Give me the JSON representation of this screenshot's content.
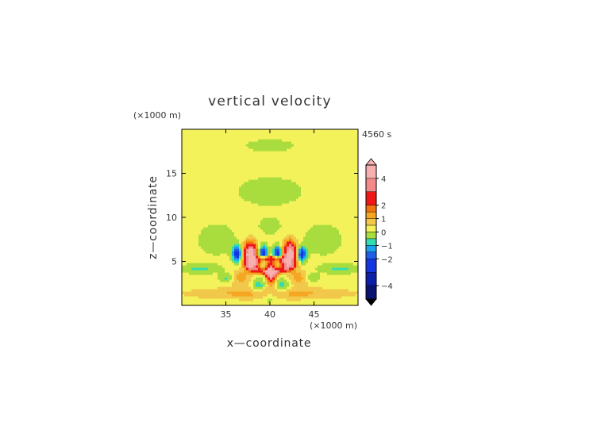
{
  "chart_data": {
    "type": "heatmap",
    "title": "vertical velocity",
    "time_label": "4560 s",
    "xlabel": "x—coordinate",
    "ylabel": "z—coordinate",
    "x_unit": "(×1000 m)",
    "y_unit": "(×1000 m)",
    "xlim": [
      30,
      50
    ],
    "ylim": [
      0,
      20
    ],
    "x_ticks": [
      35,
      40,
      45
    ],
    "y_ticks": [
      5,
      10,
      15
    ],
    "colorbar": {
      "range": [
        -5,
        5
      ],
      "tick_values": [
        4,
        2,
        1,
        0,
        -1,
        -2,
        -4
      ],
      "tick_labels": [
        "4",
        "2",
        "1",
        "0",
        "−1",
        "−2",
        "−4"
      ],
      "levels": [
        {
          "from": 4.0,
          "to": 5.0,
          "color": "#f6b0b0"
        },
        {
          "from": 3.0,
          "to": 4.0,
          "color": "#f38a8a"
        },
        {
          "from": 2.0,
          "to": 3.0,
          "color": "#ee1818"
        },
        {
          "from": 1.5,
          "to": 2.0,
          "color": "#f07410"
        },
        {
          "from": 1.0,
          "to": 1.5,
          "color": "#f5a623"
        },
        {
          "from": 0.5,
          "to": 1.0,
          "color": "#f2c84b"
        },
        {
          "from": 0.0,
          "to": 0.5,
          "color": "#f4f25a"
        },
        {
          "from": -0.5,
          "to": 0.0,
          "color": "#a9dd3e"
        },
        {
          "from": -1.0,
          "to": -0.5,
          "color": "#33ddb4"
        },
        {
          "from": -1.5,
          "to": -1.0,
          "color": "#1aa3ee"
        },
        {
          "from": -2.0,
          "to": -1.5,
          "color": "#1e5eea"
        },
        {
          "from": -3.0,
          "to": -2.0,
          "color": "#1436e0"
        },
        {
          "from": -4.0,
          "to": -3.0,
          "color": "#0d1ea8"
        },
        {
          "from": -5.0,
          "to": -4.0,
          "color": "#0a1470"
        }
      ]
    },
    "features": [
      {
        "kind": "updraft",
        "x": 37.8,
        "z": 5.8,
        "rx": 0.8,
        "rz": 1.4,
        "w": 4.8
      },
      {
        "kind": "updraft",
        "x": 42.3,
        "z": 5.9,
        "rx": 0.8,
        "rz": 1.4,
        "w": 4.8
      },
      {
        "kind": "updraft",
        "x": 40.1,
        "z": 3.8,
        "rx": 0.55,
        "rz": 1.1,
        "w": 4.6
      },
      {
        "kind": "updraft_ring",
        "x": 40.0,
        "z": 4.6,
        "rx": 3.6,
        "rz": 1.4,
        "w": 2.4
      },
      {
        "kind": "downdraft",
        "x": 36.3,
        "z": 5.9,
        "rx": 0.5,
        "rz": 0.8,
        "w": -3.0
      },
      {
        "kind": "downdraft",
        "x": 39.2,
        "z": 6.0,
        "rx": 0.5,
        "rz": 0.8,
        "w": -2.8
      },
      {
        "kind": "downdraft",
        "x": 40.9,
        "z": 6.0,
        "rx": 0.5,
        "rz": 0.8,
        "w": -2.8
      },
      {
        "kind": "downdraft",
        "x": 43.6,
        "z": 5.9,
        "rx": 0.5,
        "rz": 0.8,
        "w": -3.0
      },
      {
        "kind": "downdraft",
        "x": 35.3,
        "z": 3.2,
        "rx": 0.9,
        "rz": 0.5,
        "w": -1.1
      },
      {
        "kind": "downdraft",
        "x": 44.6,
        "z": 3.2,
        "rx": 0.9,
        "rz": 0.5,
        "w": -1.1
      },
      {
        "kind": "downdraft",
        "x": 38.7,
        "z": 2.2,
        "rx": 0.7,
        "rz": 0.9,
        "w": -1.2
      },
      {
        "kind": "downdraft",
        "x": 41.4,
        "z": 2.2,
        "rx": 0.7,
        "rz": 0.9,
        "w": -1.2
      },
      {
        "kind": "downdraft",
        "x": 40.0,
        "z": 1.0,
        "rx": 0.7,
        "rz": 0.6,
        "w": -0.9
      },
      {
        "kind": "downdraft",
        "x": 32.0,
        "z": 4.2,
        "rx": 2.2,
        "rz": 0.5,
        "w": -0.8
      },
      {
        "kind": "downdraft",
        "x": 48.0,
        "z": 4.2,
        "rx": 2.2,
        "rz": 0.5,
        "w": -0.8
      },
      {
        "kind": "weak_up",
        "x": 40.0,
        "z": 1.4,
        "rx": 9.0,
        "rz": 0.7,
        "w": 1.1
      },
      {
        "kind": "weak_up",
        "x": 36.5,
        "z": 3.2,
        "rx": 1.2,
        "rz": 0.8,
        "w": 1.2
      },
      {
        "kind": "weak_up",
        "x": 43.5,
        "z": 3.2,
        "rx": 1.2,
        "rz": 0.8,
        "w": 1.2
      },
      {
        "kind": "weak_down",
        "x": 40.0,
        "z": 13.0,
        "rx": 5.0,
        "rz": 2.2,
        "w": -0.3
      },
      {
        "kind": "weak_down",
        "x": 40.0,
        "z": 18.2,
        "rx": 4.5,
        "rz": 1.2,
        "w": -0.25
      },
      {
        "kind": "weak_down",
        "x": 34.0,
        "z": 7.5,
        "rx": 3.0,
        "rz": 2.4,
        "w": -0.3
      },
      {
        "kind": "weak_down",
        "x": 46.0,
        "z": 7.5,
        "rx": 3.0,
        "rz": 2.4,
        "w": -0.3
      },
      {
        "kind": "weak_down",
        "x": 40.0,
        "z": 9.0,
        "rx": 1.8,
        "rz": 1.3,
        "w": -0.25
      }
    ]
  }
}
